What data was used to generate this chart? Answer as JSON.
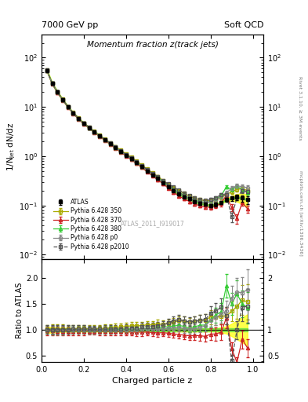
{
  "title_top_left": "7000 GeV pp",
  "title_top_right": "Soft QCD",
  "plot_title": "Momentum fraction z(track jets)",
  "ylabel_main": "1/N$_\\mathregular{jet}$ dN/dz",
  "ylabel_ratio": "Ratio to ATLAS",
  "xlabel": "Charged particle z",
  "right_label_top": "Rivet 3.1.10, ≥ 3M events",
  "right_label_bot": "mcplots.cern.ch [arXiv:1306.3436]",
  "watermark": "ATLAS_2011_I919017",
  "z_centers": [
    0.025,
    0.05,
    0.075,
    0.1,
    0.125,
    0.15,
    0.175,
    0.2,
    0.225,
    0.25,
    0.275,
    0.3,
    0.325,
    0.35,
    0.375,
    0.4,
    0.425,
    0.45,
    0.475,
    0.5,
    0.525,
    0.55,
    0.575,
    0.6,
    0.625,
    0.65,
    0.675,
    0.7,
    0.725,
    0.75,
    0.775,
    0.8,
    0.825,
    0.85,
    0.875,
    0.9,
    0.925,
    0.95,
    0.975
  ],
  "atlas_y": [
    55,
    30,
    20,
    14,
    10,
    7.5,
    5.8,
    4.6,
    3.8,
    3.1,
    2.6,
    2.15,
    1.8,
    1.5,
    1.25,
    1.05,
    0.88,
    0.74,
    0.61,
    0.5,
    0.42,
    0.35,
    0.29,
    0.24,
    0.2,
    0.17,
    0.15,
    0.135,
    0.12,
    0.11,
    0.105,
    0.1,
    0.105,
    0.115,
    0.13,
    0.14,
    0.145,
    0.14,
    0.13
  ],
  "atlas_yerr": [
    3,
    1.8,
    1.2,
    0.8,
    0.55,
    0.4,
    0.3,
    0.24,
    0.19,
    0.155,
    0.13,
    0.11,
    0.09,
    0.075,
    0.063,
    0.053,
    0.044,
    0.037,
    0.031,
    0.025,
    0.021,
    0.018,
    0.015,
    0.012,
    0.01,
    0.009,
    0.008,
    0.007,
    0.007,
    0.007,
    0.007,
    0.008,
    0.009,
    0.01,
    0.012,
    0.015,
    0.018,
    0.02,
    0.025
  ],
  "py350_y": [
    56,
    30.5,
    20.5,
    14.3,
    10.2,
    7.65,
    5.95,
    4.72,
    3.88,
    3.17,
    2.67,
    2.21,
    1.87,
    1.57,
    1.32,
    1.12,
    0.95,
    0.8,
    0.66,
    0.55,
    0.46,
    0.39,
    0.32,
    0.27,
    0.23,
    0.2,
    0.175,
    0.155,
    0.14,
    0.13,
    0.125,
    0.125,
    0.13,
    0.145,
    0.165,
    0.19,
    0.21,
    0.22,
    0.2
  ],
  "py350_yerr": [
    3,
    1.8,
    1.2,
    0.8,
    0.55,
    0.4,
    0.3,
    0.24,
    0.19,
    0.155,
    0.13,
    0.11,
    0.09,
    0.075,
    0.063,
    0.053,
    0.044,
    0.037,
    0.031,
    0.025,
    0.021,
    0.018,
    0.015,
    0.012,
    0.011,
    0.01,
    0.009,
    0.008,
    0.008,
    0.008,
    0.008,
    0.009,
    0.01,
    0.012,
    0.015,
    0.018,
    0.022,
    0.025,
    0.022
  ],
  "py370_y": [
    54,
    29.5,
    19.5,
    13.7,
    9.8,
    7.35,
    5.65,
    4.48,
    3.72,
    3.03,
    2.53,
    2.09,
    1.75,
    1.45,
    1.21,
    1.01,
    0.845,
    0.71,
    0.585,
    0.48,
    0.4,
    0.33,
    0.275,
    0.225,
    0.185,
    0.155,
    0.135,
    0.12,
    0.107,
    0.098,
    0.092,
    0.092,
    0.097,
    0.11,
    0.16,
    0.09,
    0.055,
    0.115,
    0.085
  ],
  "py370_yerr": [
    3,
    1.8,
    1.2,
    0.8,
    0.55,
    0.4,
    0.3,
    0.24,
    0.19,
    0.155,
    0.13,
    0.11,
    0.09,
    0.075,
    0.063,
    0.053,
    0.044,
    0.037,
    0.031,
    0.025,
    0.021,
    0.018,
    0.015,
    0.012,
    0.011,
    0.01,
    0.009,
    0.008,
    0.008,
    0.008,
    0.008,
    0.009,
    0.01,
    0.014,
    0.02,
    0.015,
    0.012,
    0.018,
    0.015
  ],
  "py380_y": [
    55,
    30,
    20,
    14,
    10,
    7.5,
    5.8,
    4.6,
    3.8,
    3.1,
    2.6,
    2.15,
    1.81,
    1.51,
    1.26,
    1.06,
    0.89,
    0.75,
    0.62,
    0.515,
    0.43,
    0.365,
    0.305,
    0.255,
    0.215,
    0.185,
    0.16,
    0.14,
    0.127,
    0.12,
    0.115,
    0.12,
    0.135,
    0.155,
    0.24,
    0.21,
    0.245,
    0.21,
    0.185
  ],
  "py380_yerr": [
    3,
    1.8,
    1.2,
    0.8,
    0.55,
    0.4,
    0.3,
    0.24,
    0.19,
    0.155,
    0.13,
    0.11,
    0.09,
    0.075,
    0.063,
    0.053,
    0.044,
    0.037,
    0.031,
    0.025,
    0.021,
    0.018,
    0.015,
    0.012,
    0.011,
    0.01,
    0.009,
    0.008,
    0.008,
    0.008,
    0.008,
    0.009,
    0.01,
    0.014,
    0.02,
    0.018,
    0.022,
    0.02,
    0.018
  ],
  "pyp0_y": [
    55,
    30,
    20,
    14,
    10,
    7.5,
    5.8,
    4.6,
    3.8,
    3.1,
    2.6,
    2.15,
    1.8,
    1.5,
    1.25,
    1.05,
    0.88,
    0.74,
    0.62,
    0.51,
    0.425,
    0.355,
    0.295,
    0.248,
    0.208,
    0.178,
    0.154,
    0.137,
    0.123,
    0.116,
    0.113,
    0.118,
    0.13,
    0.15,
    0.178,
    0.225,
    0.25,
    0.24,
    0.23
  ],
  "pyp0_yerr": [
    3,
    1.8,
    1.2,
    0.8,
    0.55,
    0.4,
    0.3,
    0.24,
    0.19,
    0.155,
    0.13,
    0.11,
    0.09,
    0.075,
    0.063,
    0.053,
    0.044,
    0.037,
    0.031,
    0.025,
    0.021,
    0.018,
    0.015,
    0.012,
    0.011,
    0.01,
    0.009,
    0.008,
    0.008,
    0.008,
    0.008,
    0.009,
    0.01,
    0.014,
    0.018,
    0.022,
    0.025,
    0.025,
    0.025
  ],
  "pyp2010_y": [
    55.5,
    30.2,
    20.2,
    14.1,
    10.1,
    7.6,
    5.88,
    4.67,
    3.85,
    3.14,
    2.63,
    2.18,
    1.83,
    1.53,
    1.28,
    1.085,
    0.915,
    0.77,
    0.645,
    0.535,
    0.448,
    0.378,
    0.316,
    0.273,
    0.235,
    0.204,
    0.176,
    0.156,
    0.14,
    0.13,
    0.126,
    0.132,
    0.143,
    0.165,
    0.165,
    0.058,
    0.145,
    0.2,
    0.19
  ],
  "pyp2010_yerr": [
    3,
    1.8,
    1.2,
    0.8,
    0.55,
    0.4,
    0.3,
    0.24,
    0.19,
    0.155,
    0.13,
    0.11,
    0.09,
    0.075,
    0.063,
    0.053,
    0.044,
    0.037,
    0.031,
    0.025,
    0.021,
    0.018,
    0.015,
    0.012,
    0.011,
    0.01,
    0.009,
    0.008,
    0.008,
    0.008,
    0.008,
    0.009,
    0.01,
    0.014,
    0.015,
    0.012,
    0.018,
    0.022,
    0.02
  ],
  "atlas_band_frac_low": [
    0.94,
    0.95,
    0.96,
    0.96,
    0.97,
    0.97,
    0.97,
    0.97,
    0.97,
    0.97,
    0.97,
    0.97,
    0.97,
    0.97,
    0.97,
    0.97,
    0.97,
    0.97,
    0.97,
    0.97,
    0.97,
    0.97,
    0.97,
    0.97,
    0.97,
    0.97,
    0.97,
    0.97,
    0.97,
    0.97,
    0.97,
    0.97,
    0.97,
    0.95,
    0.93,
    0.88,
    0.82,
    0.76,
    0.7
  ],
  "atlas_band_frac_high": [
    1.06,
    1.05,
    1.04,
    1.04,
    1.03,
    1.03,
    1.03,
    1.03,
    1.03,
    1.03,
    1.03,
    1.03,
    1.03,
    1.03,
    1.03,
    1.03,
    1.03,
    1.03,
    1.03,
    1.03,
    1.03,
    1.03,
    1.03,
    1.03,
    1.03,
    1.03,
    1.03,
    1.03,
    1.03,
    1.03,
    1.03,
    1.03,
    1.03,
    1.05,
    1.07,
    1.12,
    1.18,
    1.24,
    1.3
  ],
  "color_atlas": "#000000",
  "color_py350": "#aaaa00",
  "color_py370": "#cc2222",
  "color_py380": "#33cc33",
  "color_pyp0": "#888888",
  "color_pyp2010": "#555555",
  "ylim_main": [
    0.008,
    300
  ],
  "ylim_ratio": [
    0.39,
    2.35
  ],
  "xlim": [
    0.0,
    1.05
  ]
}
